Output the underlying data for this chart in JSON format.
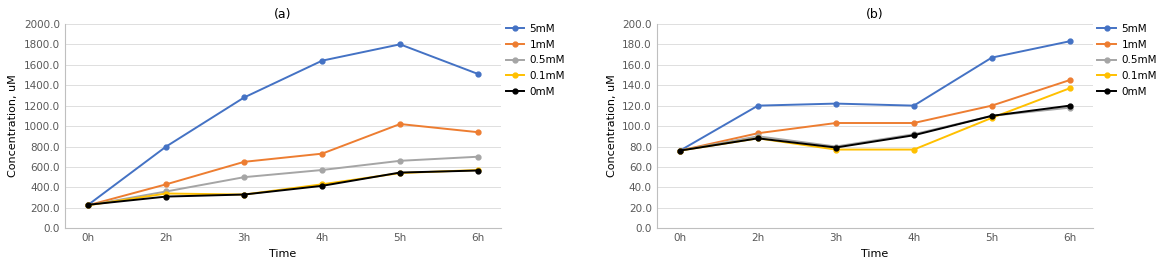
{
  "time_labels": [
    "0h",
    "2h",
    "3h",
    "4h",
    "5h",
    "6h"
  ],
  "time_vals": [
    0,
    1,
    2,
    3,
    4,
    5
  ],
  "panel_a": {
    "title": "(a)",
    "ylabel": "Concentration, uM",
    "xlabel": "Time",
    "ylim": [
      0,
      2000
    ],
    "yticks": [
      0.0,
      200.0,
      400.0,
      600.0,
      800.0,
      1000.0,
      1200.0,
      1400.0,
      1600.0,
      1800.0,
      2000.0
    ],
    "series": {
      "5mM": {
        "color": "#4472C4",
        "values": [
          230,
          800,
          1280,
          1640,
          1800,
          1510
        ]
      },
      "1mM": {
        "color": "#ED7D31",
        "values": [
          225,
          430,
          650,
          730,
          1020,
          940
        ]
      },
      "0.5mM": {
        "color": "#A5A5A5",
        "values": [
          225,
          360,
          500,
          570,
          660,
          700
        ]
      },
      "0.1mM": {
        "color": "#FFC000",
        "values": [
          225,
          340,
          330,
          430,
          540,
          570
        ]
      },
      "0mM": {
        "color": "#000000",
        "values": [
          230,
          310,
          330,
          415,
          545,
          565
        ]
      }
    },
    "legend_order": [
      "5mM",
      "1mM",
      "0.5mM",
      "0.1mM",
      "0mM"
    ]
  },
  "panel_b": {
    "title": "(b)",
    "ylabel": "Concentration, uM",
    "xlabel": "Time",
    "ylim": [
      0,
      200
    ],
    "yticks": [
      0.0,
      20.0,
      40.0,
      60.0,
      80.0,
      100.0,
      120.0,
      140.0,
      160.0,
      180.0,
      200.0
    ],
    "series": {
      "5mM": {
        "color": "#4472C4",
        "values": [
          76,
          120,
          122,
          120,
          167,
          183
        ]
      },
      "1mM": {
        "color": "#ED7D31",
        "values": [
          76,
          93,
          103,
          103,
          120,
          145
        ]
      },
      "0.5mM": {
        "color": "#A5A5A5",
        "values": [
          76,
          90,
          80,
          92,
          110,
          118
        ]
      },
      "0.1mM": {
        "color": "#FFC000",
        "values": [
          76,
          88,
          77,
          77,
          108,
          137
        ]
      },
      "0mM": {
        "color": "#000000",
        "values": [
          76,
          88,
          79,
          91,
          110,
          120
        ]
      }
    },
    "legend_order": [
      "5mM",
      "1mM",
      "0.5mM",
      "0.1mM",
      "0mM"
    ]
  },
  "marker": "o",
  "markersize": 3.5,
  "linewidth": 1.4,
  "legend_fontsize": 7.5,
  "axis_label_fontsize": 8,
  "tick_fontsize": 7.5,
  "title_fontsize": 9,
  "plot_bg_color": "#FFFFFF",
  "fig_bg_color": "#FFFFFF",
  "spine_color": "#BFBFBF"
}
